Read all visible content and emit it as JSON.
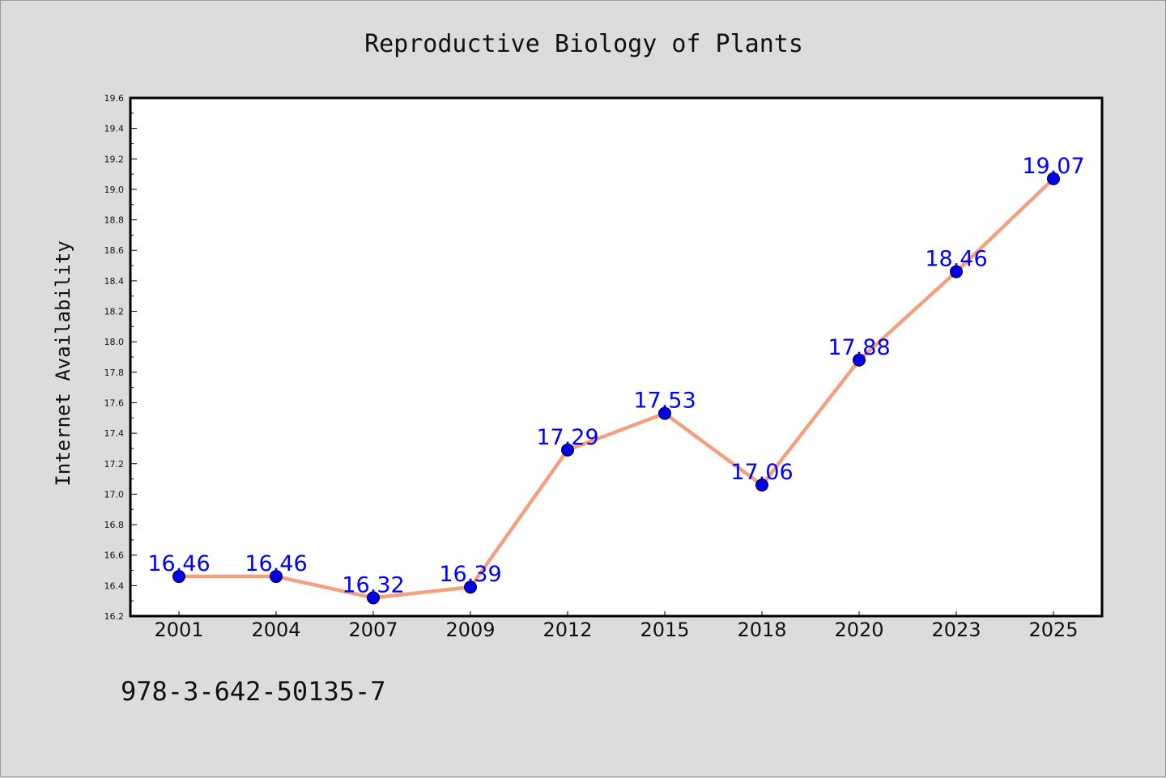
{
  "chart_data": {
    "type": "line",
    "title": "Reproductive Biology of Plants",
    "xlabel": "",
    "ylabel": "Internet Availability",
    "categories": [
      "2001",
      "2004",
      "2007",
      "2009",
      "2012",
      "2015",
      "2018",
      "2020",
      "2023",
      "2025"
    ],
    "values": [
      16.46,
      16.46,
      16.32,
      16.39,
      17.29,
      17.53,
      17.06,
      17.88,
      18.46,
      19.07
    ],
    "data_labels": [
      "16.46",
      "16.46",
      "16.32",
      "16.39",
      "17.29",
      "17.53",
      "17.06",
      "17.88",
      "18.46",
      "19.07"
    ],
    "ylim": [
      16.2,
      19.6
    ],
    "y_ticks": [
      "16.2",
      "16.4",
      "16.6",
      "16.8",
      "17.0",
      "17.2",
      "17.4",
      "17.6",
      "17.8",
      "18.0",
      "18.2",
      "18.4",
      "18.6",
      "18.8",
      "19.0",
      "19.2",
      "19.4",
      "19.6"
    ],
    "grid": false,
    "line_color": "#f4a07e",
    "marker_color": "#0000ee",
    "label_color": "#0000ff"
  },
  "footer": {
    "isbn": "978-3-642-50135-7"
  }
}
